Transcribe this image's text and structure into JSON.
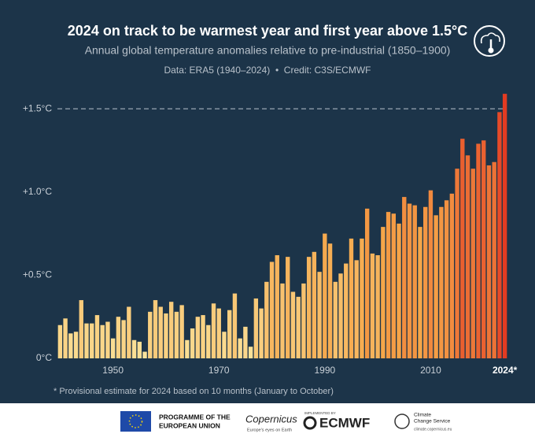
{
  "chart_data": {
    "type": "bar",
    "title": "2024 on track to be warmest year and first year above 1.5°C",
    "subtitle": "Annual global temperature anomalies relative to pre-industrial (1850–1900)",
    "source": "Data: ERA5 (1940–2024)  •  Credit: C3S/ECMWF",
    "footnote": "* Provisional estimate for 2024 based on 10 months (January to October)",
    "x": [
      1940,
      1941,
      1942,
      1943,
      1944,
      1945,
      1946,
      1947,
      1948,
      1949,
      1950,
      1951,
      1952,
      1953,
      1954,
      1955,
      1956,
      1957,
      1958,
      1959,
      1960,
      1961,
      1962,
      1963,
      1964,
      1965,
      1966,
      1967,
      1968,
      1969,
      1970,
      1971,
      1972,
      1973,
      1974,
      1975,
      1976,
      1977,
      1978,
      1979,
      1980,
      1981,
      1982,
      1983,
      1984,
      1985,
      1986,
      1987,
      1988,
      1989,
      1990,
      1991,
      1992,
      1993,
      1994,
      1995,
      1996,
      1997,
      1998,
      1999,
      2000,
      2001,
      2002,
      2003,
      2004,
      2005,
      2006,
      2007,
      2008,
      2009,
      2010,
      2011,
      2012,
      2013,
      2014,
      2015,
      2016,
      2017,
      2018,
      2019,
      2020,
      2021,
      2022,
      2023,
      2024
    ],
    "values": [
      0.2,
      0.24,
      0.15,
      0.16,
      0.35,
      0.21,
      0.21,
      0.26,
      0.2,
      0.22,
      0.12,
      0.25,
      0.23,
      0.31,
      0.11,
      0.1,
      0.04,
      0.28,
      0.35,
      0.31,
      0.27,
      0.34,
      0.28,
      0.32,
      0.11,
      0.18,
      0.25,
      0.26,
      0.2,
      0.33,
      0.3,
      0.16,
      0.29,
      0.39,
      0.12,
      0.19,
      0.07,
      0.36,
      0.3,
      0.46,
      0.58,
      0.62,
      0.45,
      0.61,
      0.4,
      0.37,
      0.45,
      0.61,
      0.64,
      0.52,
      0.75,
      0.69,
      0.46,
      0.51,
      0.57,
      0.72,
      0.59,
      0.72,
      0.9,
      0.63,
      0.62,
      0.79,
      0.88,
      0.87,
      0.81,
      0.97,
      0.93,
      0.92,
      0.79,
      0.91,
      1.01,
      0.86,
      0.91,
      0.95,
      0.99,
      1.14,
      1.32,
      1.22,
      1.14,
      1.29,
      1.31,
      1.16,
      1.18,
      1.48,
      1.59
    ],
    "colormap": [
      "#fbe7a0",
      "#f5a548",
      "#e33a22"
    ],
    "xlim": [
      1939.5,
      2024.5
    ],
    "xticks": [
      1950,
      1970,
      1990,
      2010,
      {
        "value": 2024,
        "label": "2024*"
      }
    ],
    "ylim": [
      0,
      1.6
    ],
    "yticks": [
      {
        "value": 0,
        "label": "0°C"
      },
      {
        "value": 0.5,
        "label": "+0.5°C"
      },
      {
        "value": 1.0,
        "label": "+1.0°C"
      },
      {
        "value": 1.5,
        "label": "+1.5°C"
      }
    ],
    "threshold": 1.5
  },
  "footer": {
    "eu": [
      "PROGRAMME OF THE",
      "EUROPEAN UNION"
    ],
    "copernicus": "Copernicus",
    "copernicus_tagline": "Europe's eyes on Earth",
    "implemented_by": "IMPLEMENTED BY",
    "ecmwf": "ECMWF",
    "c3s": [
      "Climate",
      "Change Service"
    ],
    "c3s_url": "climate.copernicus.eu"
  }
}
